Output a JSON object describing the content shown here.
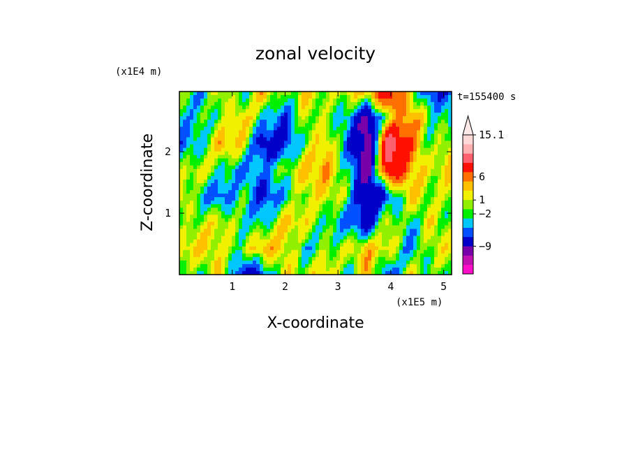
{
  "chart_data": {
    "type": "heatmap",
    "title": "zonal velocity",
    "xlabel": "X-coordinate",
    "ylabel": "Z-coordinate",
    "x_unit": "(x1E5 m)",
    "y_unit": "(x1E4 m)",
    "time_label": "t=155400 s",
    "xlim": [
      0,
      5.15
    ],
    "ylim": [
      0,
      2.98
    ],
    "x_ticks": [
      1,
      2,
      3,
      4,
      5
    ],
    "y_ticks": [
      1,
      2
    ],
    "colorbar": {
      "tick_labels": [
        "15.1",
        "6",
        "1",
        "−2",
        "−9"
      ],
      "tick_values": [
        15.1,
        6,
        1,
        -2,
        -9
      ],
      "colors": [
        "#ff10c8",
        "#c010b0",
        "#7800a8",
        "#0000c8",
        "#0050ff",
        "#00c8ff",
        "#00f000",
        "#90f000",
        "#f0f000",
        "#ffc000",
        "#ff7000",
        "#ff1000",
        "#ff6070",
        "#ffb0b0",
        "#ffd8d8"
      ],
      "top_arrow_color": "#ffe8e8"
    },
    "field": [
      [
        1,
        -3,
        2,
        -2,
        4,
        -1,
        3,
        0,
        2,
        4,
        9,
        1,
        -5,
        -3
      ],
      [
        -2,
        -1,
        0,
        3,
        -1,
        -4,
        1,
        0,
        -2,
        -8,
        2,
        5,
        0,
        -2
      ],
      [
        -3,
        -2,
        4,
        2,
        -6,
        -5,
        0,
        3,
        -3,
        -10,
        12,
        6,
        -1,
        2
      ],
      [
        0,
        2,
        -1,
        -3,
        -2,
        0,
        3,
        4,
        -1,
        -9,
        10,
        4,
        1,
        3
      ],
      [
        3,
        -2,
        -4,
        0,
        -5,
        -2,
        1,
        2,
        0,
        -7,
        -4,
        3,
        0,
        1
      ],
      [
        -1,
        1,
        2,
        -1,
        -2,
        3,
        2,
        -1,
        -3,
        -6,
        2,
        -2,
        2,
        -1
      ],
      [
        2,
        3,
        1,
        0,
        4,
        2,
        -2,
        0,
        1,
        3,
        2,
        -3,
        1,
        2
      ],
      [
        0,
        -1,
        3,
        -6,
        -4,
        2,
        1,
        3,
        -2,
        4,
        -5,
        2,
        -1,
        0
      ]
    ]
  }
}
